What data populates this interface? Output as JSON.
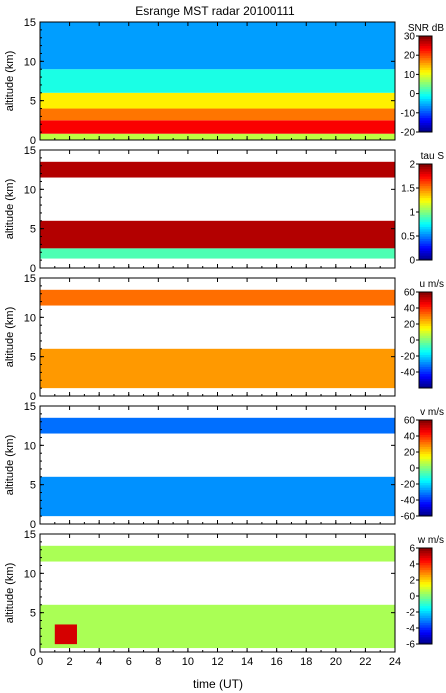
{
  "chart_data": {
    "type": "heatmap",
    "title": "Esrange MST radar 20100111",
    "xlabel": "time (UT)",
    "xlim": [
      0,
      24
    ],
    "x_ticks": [
      "0",
      "2",
      "4",
      "6",
      "8",
      "10",
      "12",
      "14",
      "16",
      "18",
      "20",
      "22",
      "24"
    ],
    "panels": [
      {
        "variable": "SNR",
        "colorbar_label": "SNR dB",
        "ylabel": "altitude (km)",
        "ylim": [
          0,
          15
        ],
        "y_ticks": [
          "0",
          "5",
          "10",
          "15"
        ],
        "clim": [
          -20,
          30
        ],
        "cbar_ticks": [
          "-20",
          "-10",
          "0",
          "10",
          "20",
          "30"
        ],
        "bands": [
          {
            "alt_range": [
              0,
              0.8
            ],
            "value": 8
          },
          {
            "alt_range": [
              0.8,
              2.5
            ],
            "value": 24
          },
          {
            "alt_range": [
              2.5,
              4
            ],
            "value": 18
          },
          {
            "alt_range": [
              4,
              6
            ],
            "value": 12
          },
          {
            "alt_range": [
              6,
              9
            ],
            "value": 0
          },
          {
            "alt_range": [
              9,
              15
            ],
            "value": -6
          }
        ]
      },
      {
        "variable": "tau",
        "colorbar_label": "tau S",
        "ylabel": "altitude (km)",
        "ylim": [
          0,
          15
        ],
        "y_ticks": [
          "0",
          "5",
          "10",
          "15"
        ],
        "clim": [
          0,
          2
        ],
        "cbar_ticks": [
          "0",
          "0.5",
          "1",
          "1.5",
          "2"
        ],
        "bands": [
          {
            "alt_range": [
              1.2,
              2.5
            ],
            "value": 0.9
          },
          {
            "alt_range": [
              2.5,
              6
            ],
            "value": 1.9
          },
          {
            "alt_range": [
              11.5,
              13.5
            ],
            "value": 1.9
          }
        ]
      },
      {
        "variable": "u",
        "colorbar_label": "u m/s",
        "ylabel": "altitude (km)",
        "ylim": [
          0,
          15
        ],
        "y_ticks": [
          "0",
          "5",
          "10",
          "15"
        ],
        "clim": [
          -60,
          60
        ],
        "cbar_ticks": [
          "-40",
          "-20",
          "0",
          "20",
          "40",
          "60"
        ],
        "bands": [
          {
            "alt_range": [
              1,
              6
            ],
            "value": 27
          },
          {
            "alt_range": [
              11.5,
              13.5
            ],
            "value": 32
          }
        ]
      },
      {
        "variable": "v",
        "colorbar_label": "v m/s",
        "ylabel": "altitude (km)",
        "ylim": [
          0,
          15
        ],
        "y_ticks": [
          "0",
          "5",
          "10",
          "15"
        ],
        "clim": [
          -60,
          60
        ],
        "cbar_ticks": [
          "-60",
          "-40",
          "-20",
          "0",
          "20",
          "40",
          "60"
        ],
        "bands": [
          {
            "alt_range": [
              1,
              6
            ],
            "value": -28
          },
          {
            "alt_range": [
              11.5,
              13.5
            ],
            "value": -32
          }
        ]
      },
      {
        "variable": "w",
        "colorbar_label": "w m/s",
        "ylabel": "altitude (km)",
        "ylim": [
          0,
          15
        ],
        "y_ticks": [
          "0",
          "5",
          "10",
          "15"
        ],
        "clim": [
          -6,
          6
        ],
        "cbar_ticks": [
          "-6",
          "-4",
          "-2",
          "0",
          "2",
          "4",
          "6"
        ],
        "bands": [
          {
            "alt_range": [
              0.5,
              6
            ],
            "value": 0.5
          },
          {
            "alt_range": [
              11.5,
              13.5
            ],
            "value": 0.5
          },
          {
            "alt_range": [
              1,
              3.5
            ],
            "value": 5,
            "time_range": [
              1,
              2.5
            ]
          }
        ]
      }
    ]
  }
}
